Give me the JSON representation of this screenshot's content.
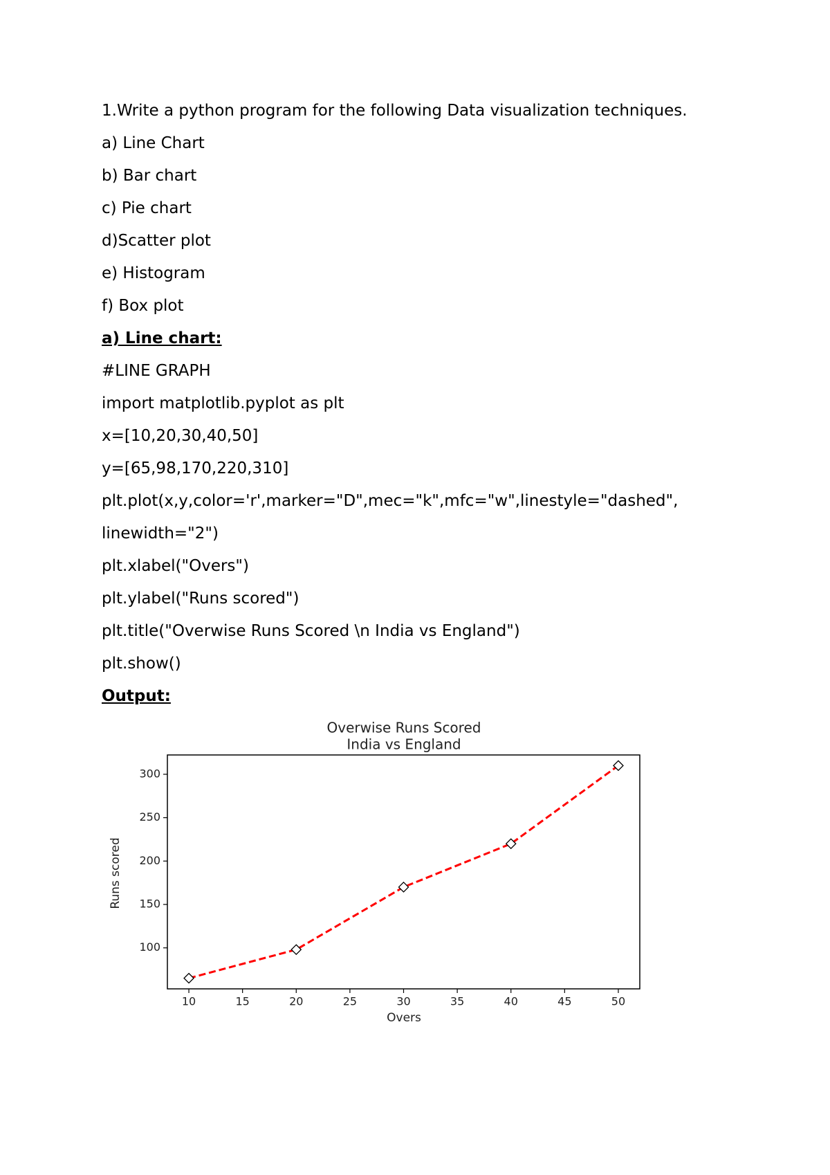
{
  "document": {
    "lines": [
      "1.Write a python program for the following Data visualization techniques.",
      "a) Line Chart",
      "b) Bar chart",
      "c) Pie chart",
      "d)Scatter plot",
      "e) Histogram",
      "f) Box plot",
      "a) Line chart:",
      "#LINE GRAPH",
      "import matplotlib.pyplot as plt",
      "x=[10,20,30,40,50]",
      "y=[65,98,170,220,310]",
      "plt.plot(x,y,color='r',marker=\"D\",mec=\"k\",mfc=\"w\",linestyle=\"dashed\",",
      "linewidth=\"2\")",
      "plt.xlabel(\"Overs\")",
      "plt.ylabel(\"Runs scored\")",
      "plt.title(\"Overwise Runs Scored \\n India vs England\")",
      "plt.show()",
      "Output:"
    ]
  },
  "chart_data": {
    "type": "line",
    "title": "Overwise Runs Scored",
    "subtitle": "India vs England",
    "x": [
      10,
      20,
      30,
      40,
      50
    ],
    "values": [
      65,
      98,
      170,
      220,
      310
    ],
    "color": "#ff0000",
    "linestyle": "dashed",
    "marker": "diamond",
    "xlabel": "Overs",
    "ylabel": "Runs scored",
    "xlim": [
      8,
      52
    ],
    "xticks": [
      10,
      15,
      20,
      25,
      30,
      35,
      40,
      45,
      50
    ],
    "ylim": [
      52.75,
      322.25
    ],
    "yticks": [
      100,
      150,
      200,
      250,
      300
    ]
  }
}
